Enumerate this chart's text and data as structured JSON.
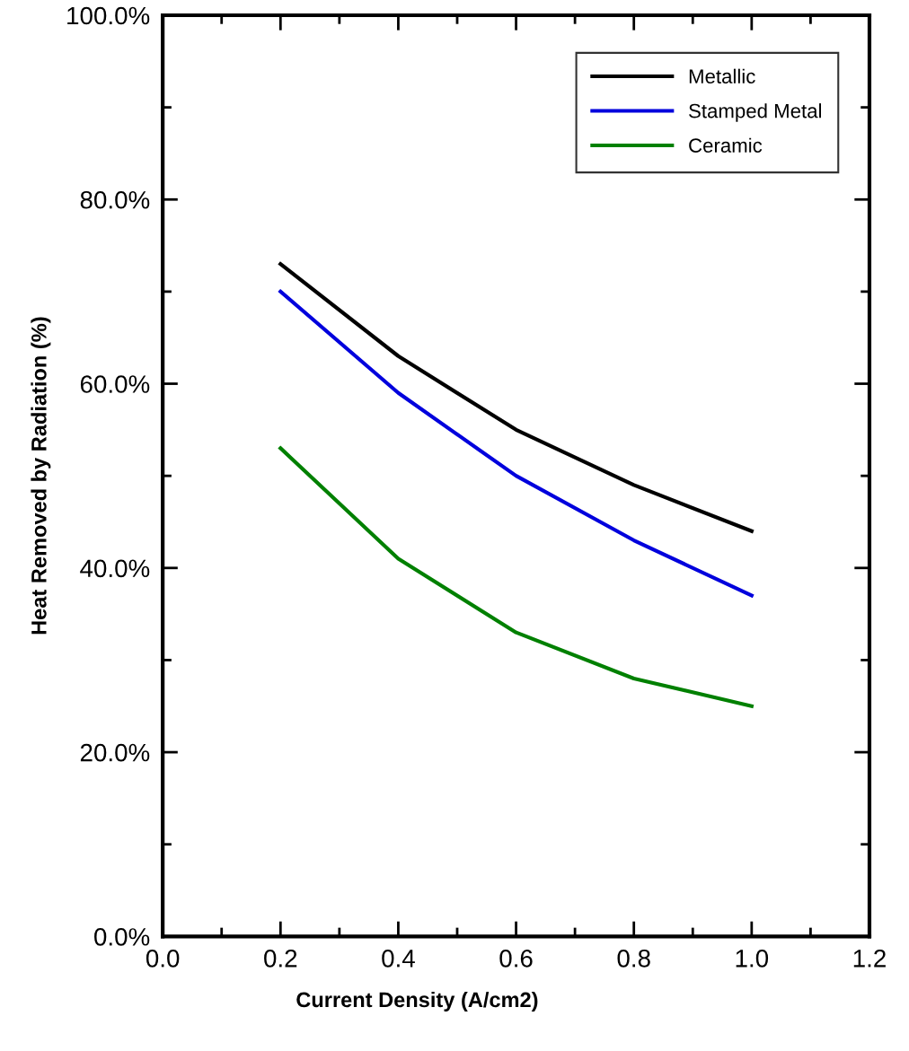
{
  "chart_data": {
    "type": "line",
    "xlabel": "Current Density (A/cm2)",
    "ylabel": "Heat Removed by Radiation (%)",
    "x": [
      0.2,
      0.4,
      0.6,
      0.8,
      1.0
    ],
    "series": [
      {
        "name": "Metallic",
        "color": "#000000",
        "values": [
          73,
          63,
          55,
          49,
          44
        ]
      },
      {
        "name": "Stamped Metal",
        "color": "#0000dd",
        "values": [
          70,
          59,
          50,
          43,
          37
        ]
      },
      {
        "name": "Ceramic",
        "color": "#008000",
        "values": [
          53,
          41,
          33,
          28,
          25
        ]
      }
    ],
    "xlim": [
      0,
      1.2
    ],
    "xticks": [
      {
        "value": 0,
        "label": "0.0"
      },
      {
        "value": 0.2,
        "label": "0.2"
      },
      {
        "value": 0.4,
        "label": "0.4"
      },
      {
        "value": 0.6,
        "label": "0.6"
      },
      {
        "value": 0.8,
        "label": "0.8"
      },
      {
        "value": 1.0,
        "label": "1.0"
      },
      {
        "value": 1.2,
        "label": "1.2"
      }
    ],
    "ylim": [
      0,
      100
    ],
    "yticks": [
      {
        "value": 0,
        "label": "0.0%"
      },
      {
        "value": 20,
        "label": "20.0%"
      },
      {
        "value": 40,
        "label": "40.0%"
      },
      {
        "value": 60,
        "label": "60.0%"
      },
      {
        "value": 80,
        "label": "80.0%"
      },
      {
        "value": 100,
        "label": "100.0%"
      }
    ],
    "legend": "top right",
    "grid": false,
    "marker": "none",
    "line_style": "solid"
  }
}
